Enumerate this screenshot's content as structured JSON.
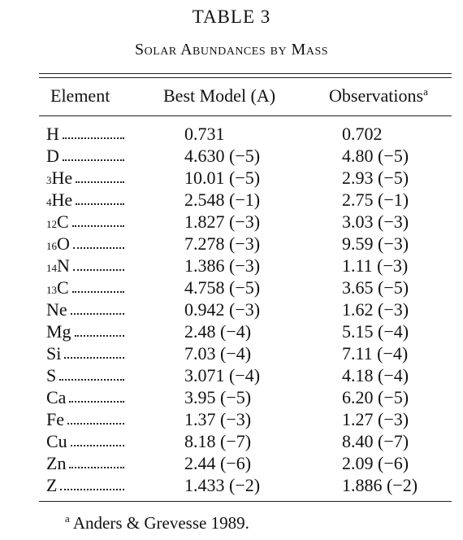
{
  "header": {
    "title": "TABLE 3",
    "subtitle": "Solar Abundances by Mass"
  },
  "table": {
    "columns": [
      "Element",
      "Best Model (A)",
      "Observations"
    ],
    "column_note": "a",
    "rows": [
      {
        "symbol": "H",
        "best": "0.731",
        "obs": "0.702"
      },
      {
        "symbol": "D",
        "best": "4.630 (−5)",
        "obs": "4.80 (−5)"
      },
      {
        "mass": "3",
        "symbol": "He",
        "best": "10.01 (−5)",
        "obs": "2.93 (−5)"
      },
      {
        "mass": "4",
        "symbol": "He",
        "best": "2.548 (−1)",
        "obs": "2.75 (−1)"
      },
      {
        "mass": "12",
        "symbol": "C",
        "best": "1.827 (−3)",
        "obs": "3.03 (−3)"
      },
      {
        "mass": "16",
        "symbol": "O",
        "best": "7.278 (−3)",
        "obs": "9.59 (−3)"
      },
      {
        "mass": "14",
        "symbol": "N",
        "best": "1.386 (−3)",
        "obs": "1.11 (−3)"
      },
      {
        "mass": "13",
        "symbol": "C",
        "best": "4.758 (−5)",
        "obs": "3.65 (−5)"
      },
      {
        "symbol": "Ne",
        "best": "0.942 (−3)",
        "obs": "1.62 (−3)"
      },
      {
        "symbol": "Mg",
        "best": "2.48 (−4)",
        "obs": "5.15 (−4)"
      },
      {
        "symbol": "Si",
        "best": "7.03 (−4)",
        "obs": "7.11 (−4)"
      },
      {
        "symbol": "S",
        "best": "3.071 (−4)",
        "obs": "4.18 (−4)"
      },
      {
        "symbol": "Ca",
        "best": "3.95 (−5)",
        "obs": "6.20 (−5)"
      },
      {
        "symbol": "Fe",
        "best": "1.37 (−3)",
        "obs": "1.27 (−3)"
      },
      {
        "symbol": "Cu",
        "best": "8.18 (−7)",
        "obs": "8.40 (−7)"
      },
      {
        "symbol": "Zn",
        "best": "2.44 (−6)",
        "obs": "2.09 (−6)"
      },
      {
        "symbol": "Z",
        "best": "1.433 (−2)",
        "obs": "1.886 (−2)"
      }
    ]
  },
  "footnote": {
    "mark": "a",
    "text": "Anders & Grevesse 1989."
  }
}
